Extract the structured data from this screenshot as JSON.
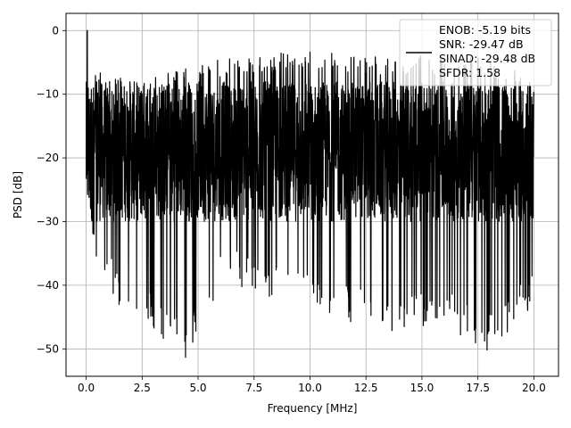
{
  "chart_data": {
    "type": "line",
    "xlabel": "Frequency [MHz]",
    "ylabel": "PSD [dB]",
    "xlim": [
      -0.9,
      21.1
    ],
    "ylim": [
      -54.3,
      2.7
    ],
    "xticks": [
      0.0,
      2.5,
      5.0,
      7.5,
      10.0,
      12.5,
      15.0,
      17.5,
      20.0
    ],
    "xtick_labels": [
      "0.0",
      "2.5",
      "5.0",
      "7.5",
      "10.0",
      "12.5",
      "15.0",
      "17.5",
      "20.0"
    ],
    "yticks": [
      0,
      -10,
      -20,
      -30,
      -40,
      -50
    ],
    "ytick_labels": [
      "0",
      "−10",
      "−20",
      "−30",
      "−40",
      "−50"
    ],
    "grid": true,
    "legend_position": "top-right",
    "series": [
      {
        "name": "ENOB: -5.19 bits\nSNR: -29.47 dB\nSINAD: -29.48 dB\nSFDR: 1.58",
        "color": "#000000",
        "x_range": [
          0,
          20
        ],
        "peak": {
          "x": 0.05,
          "y": 0
        },
        "envelope_top": [
          [
            0.0,
            -8
          ],
          [
            0.5,
            -6
          ],
          [
            1.0,
            -7
          ],
          [
            2.5,
            -8
          ],
          [
            5.0,
            -5
          ],
          [
            7.5,
            -4
          ],
          [
            10.0,
            -3
          ],
          [
            12.5,
            -4
          ],
          [
            15.0,
            -4
          ],
          [
            17.5,
            -4
          ],
          [
            20.0,
            -6
          ]
        ],
        "envelope_bottom": [
          [
            0.0,
            -31
          ],
          [
            0.5,
            -38
          ],
          [
            1.5,
            -44
          ],
          [
            3.0,
            -47
          ],
          [
            4.4,
            -52
          ],
          [
            6.0,
            -40
          ],
          [
            8.5,
            -42
          ],
          [
            10.0,
            -44
          ],
          [
            13.5,
            -47.5
          ],
          [
            16.0,
            -46
          ],
          [
            17.8,
            -50.5
          ],
          [
            20.0,
            -44
          ]
        ],
        "typical_band": [
          -30,
          -8
        ]
      }
    ],
    "legend_lines": [
      "ENOB: -5.19 bits",
      "SNR: -29.47 dB",
      "SINAD: -29.48 dB",
      "SFDR: 1.58"
    ]
  }
}
